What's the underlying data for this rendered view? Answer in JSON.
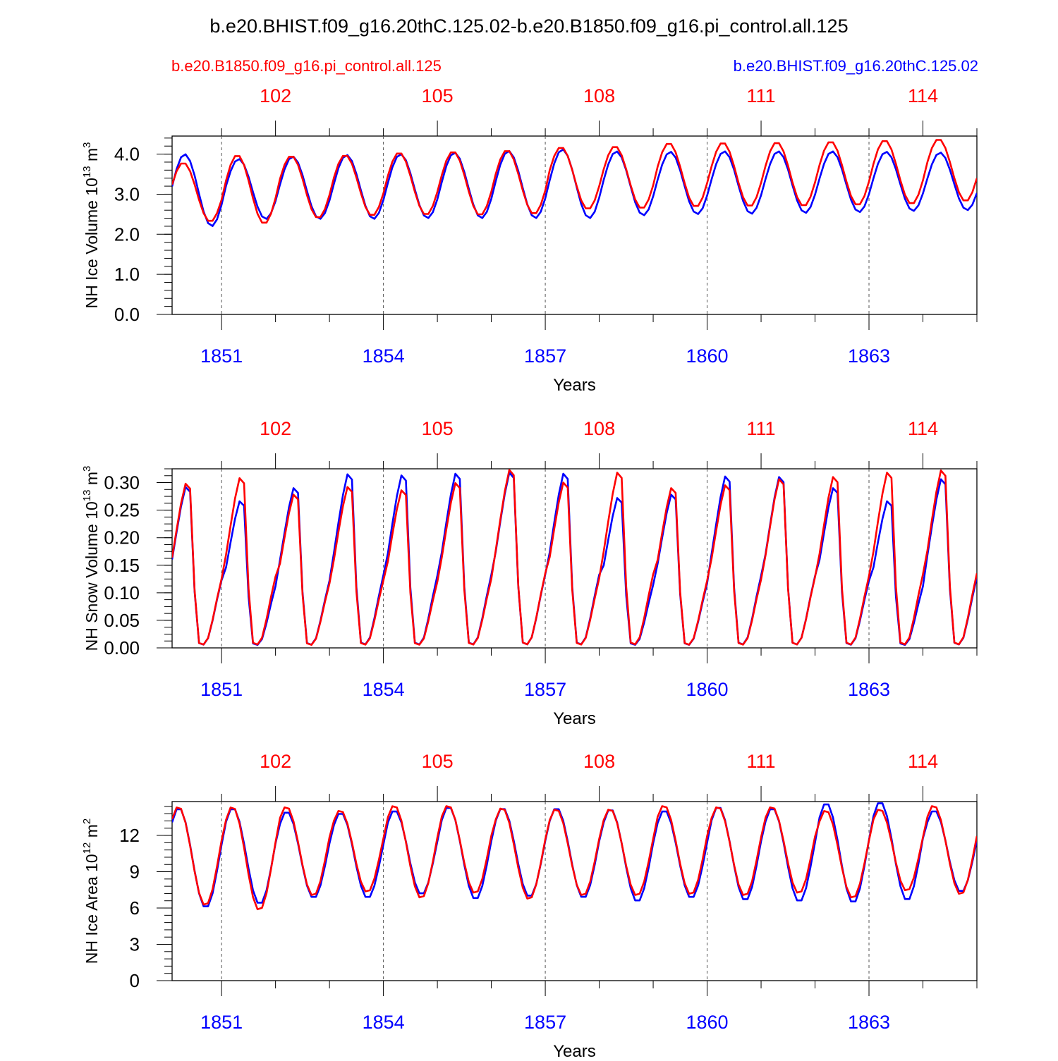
{
  "chart_data": {
    "type": "line",
    "title": "b.e20.BHIST.f09_g16.20thC.125.02-b.e20.B1850.f09_g16.pi_control.all.125",
    "legend_left": "b.e20.B1850.f09_g16.pi_control.all.125",
    "legend_right": "b.e20.BHIST.f09_g16.20thC.125.02",
    "series_colors": {
      "control": "#ff0000",
      "hist": "#0000ff"
    },
    "x_start": 1850.083,
    "x_end": 1865.0,
    "months": 180,
    "xlabel": "Years",
    "bottom_axis": {
      "ticks": [
        1851,
        1854,
        1857,
        1860,
        1863
      ],
      "labels": [
        "1851",
        "1854",
        "1857",
        "1860",
        "1863"
      ],
      "color": "#0000ff"
    },
    "top_axis": {
      "ticks": [
        1852,
        1855,
        1858,
        1861,
        1864
      ],
      "labels": [
        "102",
        "105",
        "108",
        "111",
        "114"
      ],
      "color": "#ff0000"
    },
    "panels": [
      {
        "name": "ice-volume",
        "ylabel_main": "NH Ice Volume 10",
        "ylabel_exp": "13",
        "ylabel_unit": " m",
        "ylabel_unit_exp": "3",
        "ylim": [
          0,
          4.45
        ],
        "yticks": [
          0,
          1,
          2,
          3,
          4
        ],
        "ytick_labels": [
          "0.0",
          "1.0",
          "2.0",
          "3.0",
          "4.0"
        ],
        "minor_step": 0.2,
        "hist": {
          "mean": [
            3.1,
            3.13,
            3.16,
            3.18,
            3.2,
            3.22,
            3.24,
            3.26,
            3.27,
            3.28,
            3.29,
            3.3,
            3.31,
            3.32,
            3.32
          ],
          "amp": [
            0.9,
            0.75,
            0.78,
            0.8,
            0.8,
            0.82,
            0.84,
            0.86,
            0.8,
            0.78,
            0.78,
            0.77,
            0.76,
            0.74,
            0.72
          ]
        },
        "control": {
          "mean": [
            3.05,
            3.12,
            3.18,
            3.22,
            3.26,
            3.27,
            3.3,
            3.4,
            3.42,
            3.48,
            3.49,
            3.5,
            3.52,
            3.55,
            3.6
          ],
          "amp": [
            0.74,
            0.86,
            0.78,
            0.76,
            0.78,
            0.8,
            0.8,
            0.78,
            0.78,
            0.8,
            0.8,
            0.8,
            0.8,
            0.8,
            0.78
          ]
        },
        "hist_phase": 0.3,
        "control_phase": 0.0
      },
      {
        "name": "snow-volume",
        "ylabel_main": "NH Snow Volume 10",
        "ylabel_exp": "13",
        "ylabel_unit": " m",
        "ylabel_unit_exp": "3",
        "ylim": [
          0,
          0.325
        ],
        "yticks": [
          0,
          0.05,
          0.1,
          0.15,
          0.2,
          0.25,
          0.3
        ],
        "ytick_labels": [
          "0.00",
          "0.05",
          "0.10",
          "0.15",
          "0.20",
          "0.25",
          "0.30"
        ],
        "minor_step": 0.0125,
        "hist": {
          "peaks": [
            0.292,
            0.266,
            0.29,
            0.315,
            0.313,
            0.316,
            0.318,
            0.316,
            0.272,
            0.278,
            0.311,
            0.31,
            0.29,
            0.266,
            0.306
          ]
        },
        "control": {
          "peaks": [
            0.298,
            0.308,
            0.278,
            0.292,
            0.286,
            0.299,
            0.323,
            0.3,
            0.318,
            0.29,
            0.295,
            0.306,
            0.31,
            0.318,
            0.322
          ]
        }
      },
      {
        "name": "ice-area",
        "ylabel_main": "NH Ice Area 10",
        "ylabel_exp": "12",
        "ylabel_unit": " m",
        "ylabel_unit_exp": "2",
        "ylim": [
          0,
          14.8
        ],
        "yticks": [
          0,
          3,
          6,
          9,
          12
        ],
        "ytick_labels": [
          "0",
          "3",
          "6",
          "9",
          "12"
        ],
        "minor_step": 0.6,
        "hist": {
          "max": [
            14.3,
            14.3,
            14.0,
            13.9,
            14.1,
            14.4,
            14.3,
            14.3,
            14.2,
            14.1,
            14.4,
            14.3,
            14.7,
            14.8,
            14.1
          ],
          "min": [
            6.0,
            6.3,
            6.8,
            6.8,
            7.1,
            6.7,
            6.9,
            6.8,
            6.5,
            6.8,
            6.6,
            6.5,
            6.4,
            6.6,
            7.3
          ]
        },
        "control": {
          "max": [
            14.4,
            14.4,
            14.4,
            14.1,
            14.5,
            14.5,
            14.3,
            14.2,
            14.2,
            14.5,
            14.4,
            14.4,
            14.1,
            14.2,
            14.5
          ],
          "min": [
            6.2,
            5.8,
            7.0,
            7.3,
            6.8,
            7.2,
            6.7,
            7.0,
            7.0,
            7.1,
            7.0,
            7.2,
            6.8,
            7.4,
            7.1
          ]
        }
      }
    ]
  }
}
